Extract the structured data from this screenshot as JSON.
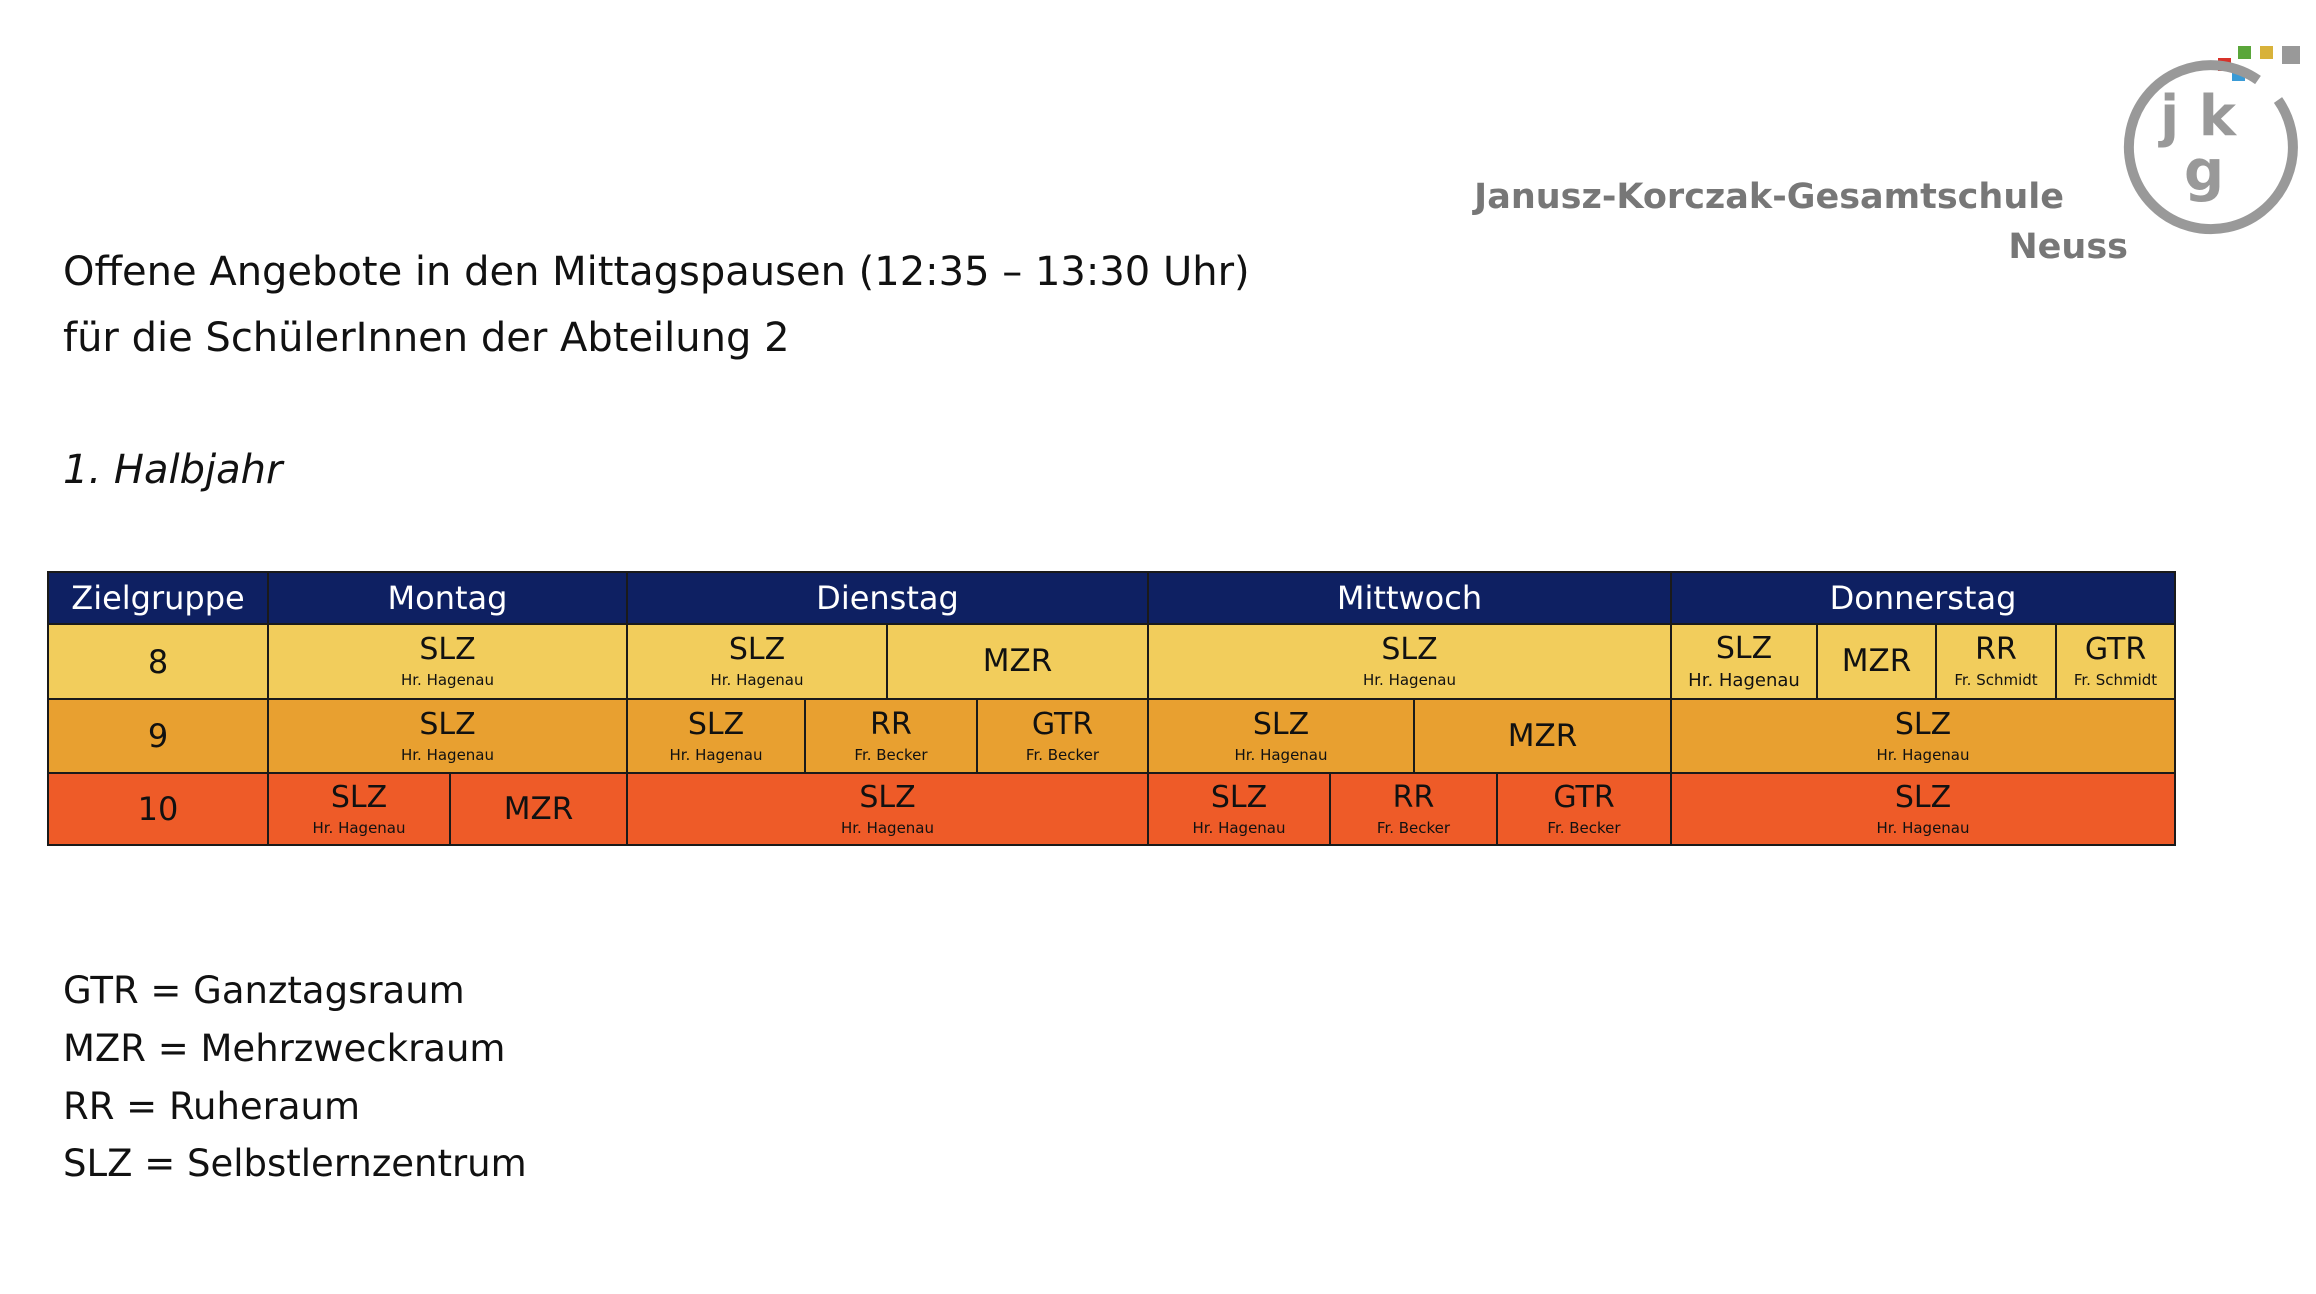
{
  "heading": {
    "line1": "Offene Angebote in den Mittagspausen (12:35 – 13:30 Uhr)",
    "line2": "für die SchülerInnen der Abteilung 2",
    "semester": "1. Halbjahr"
  },
  "logo": {
    "letters": "jkg",
    "name": "Janusz-Korczak-Gesamtschule",
    "city": "Neuss",
    "square_colors": [
      "#d8322a",
      "#5aa63a",
      "#3a9bd6",
      "#d8b23a",
      "#999999"
    ]
  },
  "table": {
    "header": {
      "group": "Zielgruppe",
      "mon": "Montag",
      "tue": "Dienstag",
      "wed": "Mittwoch",
      "thu": "Donnerstag"
    },
    "colors": {
      "header": "#0e2062",
      "grade8": "#f2cd5c",
      "grade9": "#e8a030",
      "grade10": "#ee5b28"
    },
    "row8": {
      "group": "8",
      "mon": {
        "room": "SLZ",
        "person": "Hr. Hagenau"
      },
      "tue1": {
        "room": "SLZ",
        "person": "Hr. Hagenau"
      },
      "tue2": {
        "room": "MZR"
      },
      "wed": {
        "room": "SLZ",
        "person": "Hr. Hagenau"
      },
      "thu1": {
        "room": "SLZ",
        "person": "Hr. Hagenau"
      },
      "thu2": {
        "room": "MZR"
      },
      "thu3": {
        "room": "RR",
        "person": "Fr. Schmidt"
      },
      "thu4": {
        "room": "GTR",
        "person": "Fr. Schmidt"
      }
    },
    "row9": {
      "group": "9",
      "mon": {
        "room": "SLZ",
        "person": "Hr. Hagenau"
      },
      "tue1": {
        "room": "SLZ",
        "person": "Hr. Hagenau"
      },
      "tue2": {
        "room": "RR",
        "person": "Fr. Becker"
      },
      "tue3": {
        "room": "GTR",
        "person": "Fr. Becker"
      },
      "wed1": {
        "room": "SLZ",
        "person": "Hr. Hagenau"
      },
      "wed2": {
        "room": "MZR"
      },
      "thu": {
        "room": "SLZ",
        "person": "Hr. Hagenau"
      }
    },
    "row10": {
      "group": "10",
      "mon1": {
        "room": "SLZ",
        "person": "Hr. Hagenau"
      },
      "mon2": {
        "room": "MZR"
      },
      "tue": {
        "room": "SLZ",
        "person": "Hr. Hagenau"
      },
      "wed1": {
        "room": "SLZ",
        "person": "Hr. Hagenau"
      },
      "wed2": {
        "room": "RR",
        "person": "Fr. Becker"
      },
      "wed3": {
        "room": "GTR",
        "person": "Fr. Becker"
      },
      "thu": {
        "room": "SLZ",
        "person": "Hr. Hagenau"
      }
    }
  },
  "legend": [
    "GTR = Ganztagsraum",
    "MZR = Mehrzweckraum",
    "RR = Ruheraum",
    "SLZ = Selbstlernzentrum"
  ]
}
